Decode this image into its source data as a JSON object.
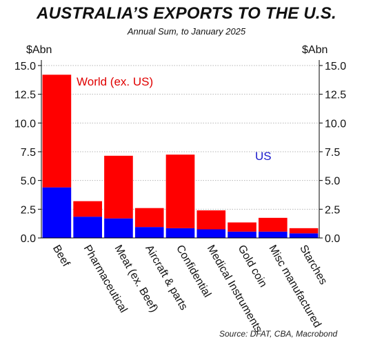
{
  "chart_data": {
    "type": "bar",
    "stacked": true,
    "title": "AUSTRALIA’S EXPORTS TO THE U.S.",
    "subtitle": "Annual Sum, to January 2025",
    "ylabel_left": "$Abn",
    "ylabel_right": "$Abn",
    "ylim": [
      0,
      15
    ],
    "yticks": [
      "0.0",
      "2.5",
      "5.0",
      "7.5",
      "10.0",
      "12.5",
      "15.0"
    ],
    "ytick_values": [
      0,
      2.5,
      5,
      7.5,
      10,
      12.5,
      15
    ],
    "grid": true,
    "categories": [
      "Beef",
      "Pharmaceutical",
      "Meat (ex. Beef)",
      "Aircraft & parts",
      "Confidential",
      "Medical Instruments",
      "Gold coin",
      "Misc manufactured",
      "Starches"
    ],
    "series": [
      {
        "name": "US",
        "color": "#0000ff",
        "values": [
          4.4,
          1.85,
          1.7,
          0.95,
          0.85,
          0.75,
          0.55,
          0.55,
          0.4
        ]
      },
      {
        "name": "World (ex. US)",
        "color": "#ff0000",
        "values": [
          9.8,
          1.35,
          5.45,
          1.65,
          6.4,
          1.65,
          0.8,
          1.2,
          0.45
        ]
      }
    ],
    "annotations": [
      {
        "text": "World (ex. US)",
        "color": "#e00000"
      },
      {
        "text": "US",
        "color": "#1a1acc"
      }
    ],
    "source": "Source: DFAT, CBA, Macrobond"
  }
}
